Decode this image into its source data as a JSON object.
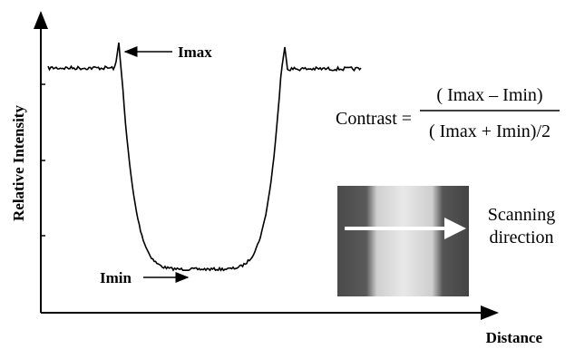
{
  "axes": {
    "y_label": "Relative Intensity",
    "x_label": "Distance"
  },
  "annotations": {
    "imax": "Imax",
    "imin": "Imin"
  },
  "formula": {
    "lhs": "Contrast =",
    "numerator": "( Imax – Imin)",
    "denominator": "( Imax + Imin)/2"
  },
  "inset": {
    "label": [
      "Scanning",
      "direction"
    ]
  }
}
